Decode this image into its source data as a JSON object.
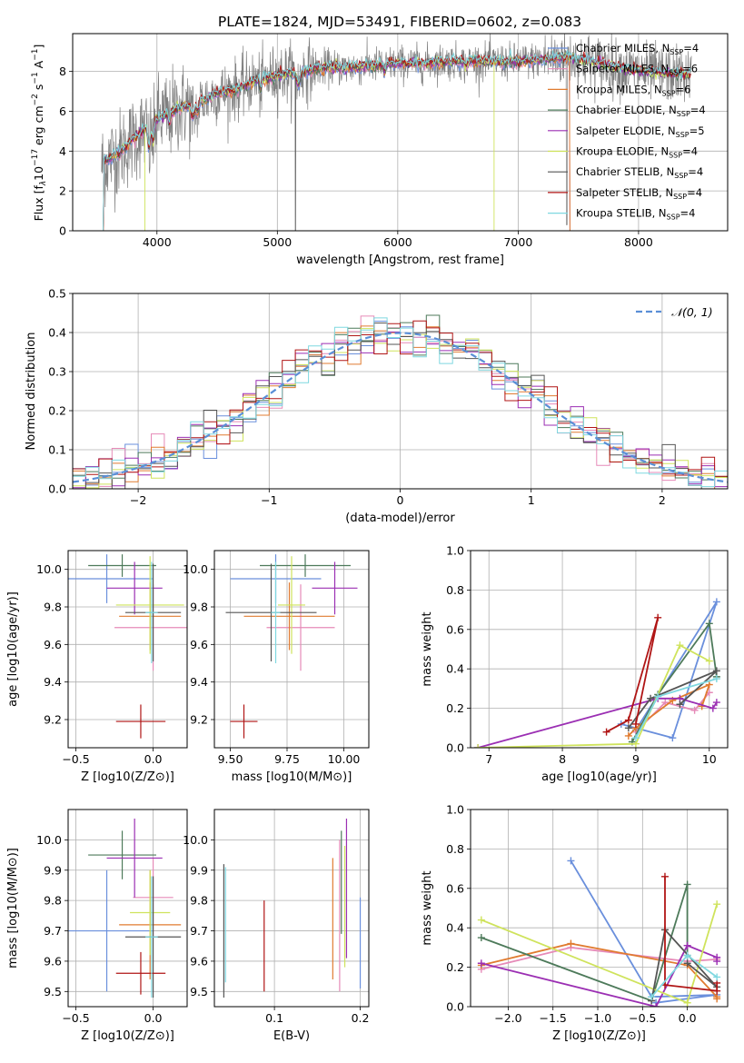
{
  "title": "PLATE=1824, MJD=53491, FIBERID=0602, z=0.083",
  "colors": {
    "chab_miles": "#6a8fdc",
    "salp_miles": "#e68ab8",
    "krou_miles": "#e07b30",
    "chab_elodie": "#4d7a5a",
    "salp_elodie": "#9b2fb3",
    "krou_elodie": "#cfe35c",
    "chab_stelib": "#555555",
    "salp_stelib": "#b01515",
    "krou_stelib": "#7fd8e0",
    "gauss": "#5a8fd6",
    "grid": "#b0b0b0"
  },
  "chart_data": [
    {
      "type": "line",
      "xlabel": "wavelength [Angstrom, rest frame]",
      "ylabel": "Flux [f_λ10^-17 erg cm^-2 s^-1 A^-1]",
      "xlim": [
        3300,
        8740
      ],
      "ylim": [
        0,
        9.9
      ],
      "xticks": [
        "4000",
        "5000",
        "6000",
        "7000",
        "8000"
      ],
      "yticks": [
        "0",
        "2",
        "4",
        "6",
        "8"
      ],
      "legend": "top-right",
      "series": [
        {
          "name": "Chabrier MILES, N_SSP=4"
        },
        {
          "name": "Salpeter MILES, N_SSP=6"
        },
        {
          "name": "Kroupa MILES, N_SSP=6"
        },
        {
          "name": "Chabrier ELODIE, N_SSP=4"
        },
        {
          "name": "Salpeter ELODIE, N_SSP=5"
        },
        {
          "name": "Kroupa ELODIE, N_SSP=4"
        },
        {
          "name": "Chabrier STELIB, N_SSP=4"
        },
        {
          "name": "Salpeter STELIB, N_SSP=4"
        },
        {
          "name": "Kroupa STELIB, N_SSP=4"
        }
      ],
      "continuum": {
        "x": [
          3540,
          3600,
          3700,
          3800,
          3900,
          4000,
          4100,
          4200,
          4300,
          4400,
          4500,
          4600,
          4700,
          4800,
          4900,
          5000,
          5200,
          5400,
          5600,
          5800,
          6000,
          6200,
          6400,
          6600,
          6800,
          7000,
          7200,
          7400,
          7600,
          7800,
          8000,
          8200,
          8440
        ],
        "y": [
          3.3,
          3.6,
          4.0,
          4.6,
          5.1,
          5.6,
          5.9,
          6.2,
          6.4,
          6.6,
          6.9,
          7.0,
          7.2,
          7.5,
          7.6,
          7.8,
          8.0,
          8.2,
          8.2,
          8.3,
          8.4,
          8.4,
          8.5,
          8.5,
          8.5,
          8.5,
          8.6,
          8.7,
          8.5,
          8.2,
          8.0,
          7.9,
          7.8
        ]
      },
      "model_cutoffs": [
        3550,
        3900,
        5150,
        6800,
        7430
      ]
    },
    {
      "type": "bar",
      "xlabel": "(data-model)/error",
      "ylabel": "Normed distribution",
      "xlim": [
        -2.5,
        2.5
      ],
      "ylim": [
        0,
        0.5
      ],
      "xticks": [
        "−2",
        "−1",
        "0",
        "1",
        "2"
      ],
      "yticks": [
        "0.0",
        "0.1",
        "0.2",
        "0.3",
        "0.4",
        "0.5"
      ],
      "legend": "top-right",
      "gauss_label": "𝒩(0, 1)",
      "bin_width": 0.1
    },
    {
      "type": "scatter",
      "xlabel": "Z [log10(Z/Z⊙)]",
      "ylabel": "age  [log10(age/yr)]",
      "xlim": [
        -0.55,
        0.22
      ],
      "ylim": [
        9.05,
        10.1
      ],
      "xticks": [
        "−0.5",
        "0.0"
      ],
      "yticks": [
        "9.2",
        "9.4",
        "9.6",
        "9.8",
        "10.0"
      ],
      "points": [
        {
          "x": -0.3,
          "y": 9.95,
          "xerr": 0.3,
          "yerr": 0.13,
          "c": "chab_miles"
        },
        {
          "x": 0.0,
          "y": 9.69,
          "xerr": 0.25,
          "yerr": 0.23,
          "c": "salp_miles"
        },
        {
          "x": -0.02,
          "y": 9.75,
          "xerr": 0.2,
          "yerr": 0.18,
          "c": "krou_miles"
        },
        {
          "x": -0.2,
          "y": 10.02,
          "xerr": 0.22,
          "yerr": 0.06,
          "c": "chab_elodie"
        },
        {
          "x": -0.12,
          "y": 9.9,
          "xerr": 0.18,
          "yerr": 0.14,
          "c": "salp_elodie"
        },
        {
          "x": -0.02,
          "y": 9.81,
          "xerr": 0.22,
          "yerr": 0.26,
          "c": "krou_elodie"
        },
        {
          "x": 0.0,
          "y": 9.77,
          "xerr": 0.18,
          "yerr": 0.26,
          "c": "chab_stelib"
        },
        {
          "x": -0.08,
          "y": 9.19,
          "xerr": 0.16,
          "yerr": 0.09,
          "c": "salp_stelib"
        },
        {
          "x": -0.01,
          "y": 9.77,
          "xerr": 0.04,
          "yerr": 0.27,
          "c": "krou_stelib"
        }
      ]
    },
    {
      "type": "scatter",
      "xlabel": "mass [log10(M/M⊙)]",
      "ylabel": "",
      "xlim": [
        9.43,
        10.11
      ],
      "ylim": [
        9.05,
        10.1
      ],
      "xticks": [
        "9.50",
        "9.75",
        "10.00"
      ],
      "yticks": [
        "9.2",
        "9.4",
        "9.6",
        "9.8",
        "10.0"
      ],
      "points": [
        {
          "x": 9.7,
          "y": 9.95,
          "xerr": 0.2,
          "yerr": 0.13,
          "c": "chab_miles"
        },
        {
          "x": 9.81,
          "y": 9.69,
          "xerr": 0.15,
          "yerr": 0.23,
          "c": "salp_miles"
        },
        {
          "x": 9.76,
          "y": 9.75,
          "xerr": 0.2,
          "yerr": 0.18,
          "c": "krou_miles"
        },
        {
          "x": 9.83,
          "y": 10.02,
          "xerr": 0.2,
          "yerr": 0.06,
          "c": "chab_elodie"
        },
        {
          "x": 9.96,
          "y": 9.9,
          "xerr": 0.1,
          "yerr": 0.14,
          "c": "salp_elodie"
        },
        {
          "x": 9.77,
          "y": 9.81,
          "xerr": 0.06,
          "yerr": 0.26,
          "c": "krou_elodie"
        },
        {
          "x": 9.68,
          "y": 9.77,
          "xerr": 0.2,
          "yerr": 0.26,
          "c": "chab_stelib"
        },
        {
          "x": 9.56,
          "y": 9.19,
          "xerr": 0.06,
          "yerr": 0.09,
          "c": "salp_stelib"
        },
        {
          "x": 9.7,
          "y": 9.77,
          "xerr": 0.02,
          "yerr": 0.27,
          "c": "krou_stelib"
        }
      ]
    },
    {
      "type": "line",
      "xlabel": "age  [log10(age/yr)]",
      "ylabel": "mass weight",
      "xlim": [
        6.75,
        10.25
      ],
      "ylim": [
        0,
        1.0
      ],
      "xticks": [
        "7",
        "8",
        "9",
        "10"
      ],
      "yticks": [
        "0.0",
        "0.2",
        "0.4",
        "0.6",
        "0.8",
        "1.0"
      ],
      "series": [
        {
          "c": "chab_miles",
          "x": [
            8.8,
            9.5,
            10.1,
            9.0
          ],
          "y": [
            0.12,
            0.05,
            0.74,
            0.09
          ]
        },
        {
          "c": "salp_miles",
          "x": [
            9.0,
            9.4,
            9.8,
            10.0
          ],
          "y": [
            0.08,
            0.23,
            0.19,
            0.28
          ]
        },
        {
          "c": "krou_miles",
          "x": [
            8.9,
            9.0,
            9.5,
            10.0,
            9.9
          ],
          "y": [
            0.06,
            0.1,
            0.24,
            0.32,
            0.21
          ]
        },
        {
          "c": "chab_elodie",
          "x": [
            8.95,
            9.3,
            10.0,
            10.1
          ],
          "y": [
            0.03,
            0.27,
            0.63,
            0.36
          ]
        },
        {
          "c": "salp_elodie",
          "x": [
            6.85,
            9.3,
            9.6,
            10.05,
            10.1
          ],
          "y": [
            0.0,
            0.25,
            0.25,
            0.2,
            0.23
          ]
        },
        {
          "c": "krou_elodie",
          "x": [
            6.85,
            9.0,
            9.6,
            10.0
          ],
          "y": [
            0.0,
            0.02,
            0.52,
            0.44
          ]
        },
        {
          "c": "chab_stelib",
          "x": [
            8.9,
            9.2,
            10.1,
            9.6
          ],
          "y": [
            0.1,
            0.25,
            0.39,
            0.22
          ]
        },
        {
          "c": "salp_stelib",
          "x": [
            8.6,
            8.9,
            9.3,
            9.0
          ],
          "y": [
            0.08,
            0.14,
            0.66,
            0.12
          ]
        },
        {
          "c": "krou_stelib",
          "x": [
            9.0,
            9.3,
            10.1
          ],
          "y": [
            0.05,
            0.26,
            0.35
          ]
        }
      ]
    },
    {
      "type": "scatter",
      "xlabel": "Z [log10(Z/Z⊙)]",
      "ylabel": "mass [log10(M/M⊙)]",
      "xlim": [
        -0.55,
        0.22
      ],
      "ylim": [
        9.45,
        10.1
      ],
      "xticks": [
        "−0.5",
        "0.0"
      ],
      "yticks": [
        "9.5",
        "9.6",
        "9.7",
        "9.8",
        "9.9",
        "10.0"
      ],
      "points": [
        {
          "x": -0.3,
          "y": 9.7,
          "xerr": 0.3,
          "yerr": 0.2,
          "c": "chab_miles"
        },
        {
          "x": 0.0,
          "y": 9.81,
          "xerr": 0.13,
          "yerr": 0.13,
          "c": "salp_miles"
        },
        {
          "x": -0.02,
          "y": 9.72,
          "xerr": 0.2,
          "yerr": 0.18,
          "c": "krou_miles"
        },
        {
          "x": -0.2,
          "y": 9.95,
          "xerr": 0.22,
          "yerr": 0.08,
          "c": "chab_elodie"
        },
        {
          "x": -0.12,
          "y": 9.94,
          "xerr": 0.18,
          "yerr": 0.13,
          "c": "salp_elodie"
        },
        {
          "x": -0.02,
          "y": 9.76,
          "xerr": 0.13,
          "yerr": 0.14,
          "c": "krou_elodie"
        },
        {
          "x": 0.0,
          "y": 9.68,
          "xerr": 0.18,
          "yerr": 0.2,
          "c": "chab_stelib"
        },
        {
          "x": -0.08,
          "y": 9.56,
          "xerr": 0.16,
          "yerr": 0.07,
          "c": "salp_stelib"
        },
        {
          "x": -0.01,
          "y": 9.68,
          "xerr": 0.04,
          "yerr": 0.2,
          "c": "krou_stelib"
        }
      ]
    },
    {
      "type": "scatter",
      "xlabel": "E(B-V)",
      "ylabel": "",
      "xlim": [
        0.03,
        0.21
      ],
      "ylim": [
        9.45,
        10.1
      ],
      "xticks": [
        "0.1",
        "0.2"
      ],
      "yticks": [
        "9.5",
        "9.6",
        "9.7",
        "9.8",
        "9.9",
        "10.0"
      ],
      "points": [
        {
          "x": 0.2,
          "y": 9.66,
          "yerr": 0.15,
          "c": "chab_miles"
        },
        {
          "x": 0.176,
          "y": 9.75,
          "yerr": 0.25,
          "c": "salp_miles"
        },
        {
          "x": 0.168,
          "y": 9.74,
          "yerr": 0.2,
          "c": "krou_miles"
        },
        {
          "x": 0.178,
          "y": 9.86,
          "yerr": 0.17,
          "c": "chab_elodie"
        },
        {
          "x": 0.184,
          "y": 9.84,
          "yerr": 0.23,
          "c": "salp_elodie"
        },
        {
          "x": 0.182,
          "y": 9.78,
          "yerr": 0.2,
          "c": "krou_elodie"
        },
        {
          "x": 0.041,
          "y": 9.7,
          "yerr": 0.22,
          "c": "chab_stelib"
        },
        {
          "x": 0.088,
          "y": 9.65,
          "yerr": 0.15,
          "c": "salp_stelib"
        },
        {
          "x": 0.043,
          "y": 9.72,
          "yerr": 0.19,
          "c": "krou_stelib"
        }
      ]
    },
    {
      "type": "line",
      "xlabel": "Z [log10(Z/Z⊙)]",
      "ylabel": "mass weight",
      "xlim": [
        -2.42,
        0.45
      ],
      "ylim": [
        0,
        1.0
      ],
      "xticks": [
        "−2.0",
        "−1.5",
        "−1.0",
        "−0.5",
        "0.0"
      ],
      "yticks": [
        "0.0",
        "0.2",
        "0.4",
        "0.6",
        "0.8",
        "1.0"
      ],
      "series": [
        {
          "c": "chab_miles",
          "x": [
            -1.3,
            -0.4,
            0.33,
            -0.35
          ],
          "y": [
            0.74,
            0.05,
            0.06,
            0.02
          ]
        },
        {
          "c": "salp_miles",
          "x": [
            -2.3,
            -1.3,
            0.0,
            0.33
          ],
          "y": [
            0.19,
            0.3,
            0.23,
            0.24
          ]
        },
        {
          "c": "krou_miles",
          "x": [
            -2.3,
            -1.3,
            0.0,
            0.33,
            0.33
          ],
          "y": [
            0.21,
            0.32,
            0.21,
            0.05,
            0.04
          ]
        },
        {
          "c": "chab_elodie",
          "x": [
            -2.3,
            -0.4,
            0.0,
            0.0
          ],
          "y": [
            0.35,
            0.03,
            0.62,
            0.26
          ]
        },
        {
          "c": "salp_elodie",
          "x": [
            -2.3,
            -0.35,
            0.0,
            0.33,
            0.33
          ],
          "y": [
            0.22,
            0.0,
            0.31,
            0.25,
            0.23
          ]
        },
        {
          "c": "krou_elodie",
          "x": [
            -2.3,
            0.0,
            0.33,
            0.0
          ],
          "y": [
            0.44,
            0.02,
            0.52,
            0.02
          ]
        },
        {
          "c": "chab_stelib",
          "x": [
            -0.4,
            -0.25,
            0.33,
            0.0
          ],
          "y": [
            0.03,
            0.39,
            0.1,
            0.22
          ]
        },
        {
          "c": "salp_stelib",
          "x": [
            -0.25,
            -0.25,
            0.33,
            0.33
          ],
          "y": [
            0.66,
            0.11,
            0.08,
            0.12
          ]
        },
        {
          "c": "krou_stelib",
          "x": [
            -0.4,
            0.0,
            0.33
          ],
          "y": [
            0.05,
            0.26,
            0.15
          ]
        }
      ]
    }
  ]
}
